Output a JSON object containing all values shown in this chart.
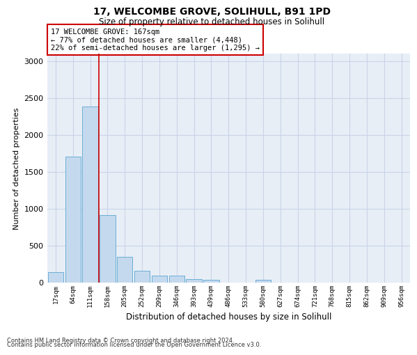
{
  "title_line1": "17, WELCOMBE GROVE, SOLIHULL, B91 1PD",
  "title_line2": "Size of property relative to detached houses in Solihull",
  "xlabel": "Distribution of detached houses by size in Solihull",
  "ylabel": "Number of detached properties",
  "categories": [
    "17sqm",
    "64sqm",
    "111sqm",
    "158sqm",
    "205sqm",
    "252sqm",
    "299sqm",
    "346sqm",
    "393sqm",
    "439sqm",
    "486sqm",
    "533sqm",
    "580sqm",
    "627sqm",
    "674sqm",
    "721sqm",
    "768sqm",
    "815sqm",
    "862sqm",
    "909sqm",
    "956sqm"
  ],
  "values": [
    140,
    1700,
    2380,
    910,
    345,
    155,
    90,
    90,
    45,
    30,
    0,
    0,
    30,
    0,
    0,
    0,
    0,
    0,
    0,
    0,
    0
  ],
  "bar_color": "#c5d9ee",
  "bar_edge_color": "#6aaed6",
  "vline_x_index": 3,
  "annotation_text_line1": "17 WELCOMBE GROVE: 167sqm",
  "annotation_text_line2": "← 77% of detached houses are smaller (4,448)",
  "annotation_text_line3": "22% of semi-detached houses are larger (1,295) →",
  "annotation_box_facecolor": "#ffffff",
  "annotation_box_edgecolor": "#cc0000",
  "vline_color": "#cc0000",
  "ylim": [
    0,
    3100
  ],
  "yticks": [
    0,
    500,
    1000,
    1500,
    2000,
    2500,
    3000
  ],
  "grid_color": "#c8d4e8",
  "background_color": "#e8eef6",
  "footer_line1": "Contains HM Land Registry data © Crown copyright and database right 2024.",
  "footer_line2": "Contains public sector information licensed under the Open Government Licence v3.0."
}
